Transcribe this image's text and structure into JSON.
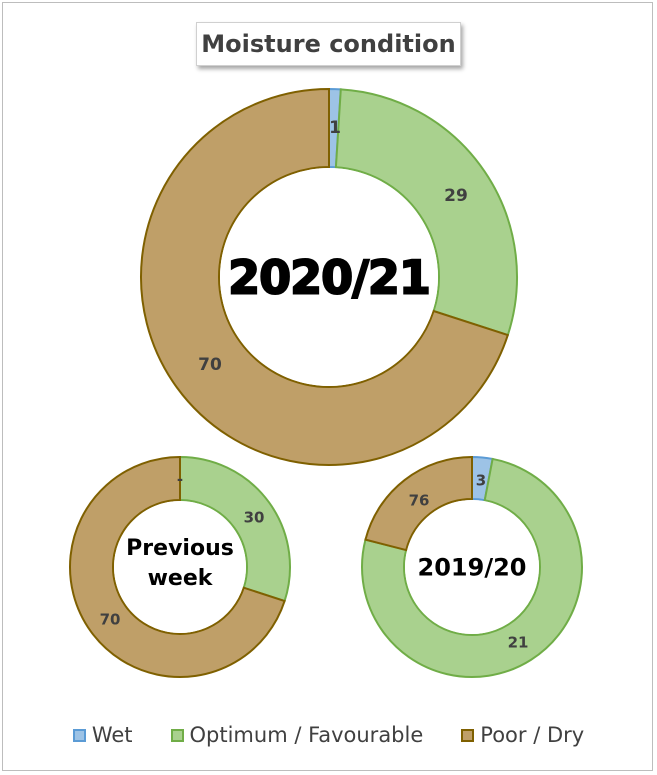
{
  "title": "Moisture condition",
  "colors": {
    "wet": "#9dc3e6",
    "wet_border": "#5b9bd5",
    "optimum": "#a9d18e",
    "optimum_border": "#70ad47",
    "poor": "#bf9f68",
    "poor_border": "#7f6000"
  },
  "chart_data": [
    {
      "type": "donut",
      "center_label": "2020/21",
      "categories": [
        "Wet",
        "Optimum / Favourable",
        "Poor / Dry"
      ],
      "values": [
        1,
        29,
        70
      ],
      "data_labels": [
        "1",
        "29",
        "70"
      ]
    },
    {
      "type": "donut",
      "center_label": "Previous week",
      "categories": [
        "Wet",
        "Optimum / Favourable",
        "Poor / Dry"
      ],
      "values": [
        0,
        30,
        70
      ],
      "data_labels": [
        "-",
        "30",
        "70"
      ]
    },
    {
      "type": "donut",
      "center_label": "2019/20",
      "categories": [
        "Wet",
        "Optimum / Favourable",
        "Poor / Dry"
      ],
      "values": [
        3,
        76,
        21
      ],
      "data_labels": [
        "3",
        "76",
        "21"
      ]
    }
  ],
  "legend": [
    {
      "label": "Wet",
      "key": "wet"
    },
    {
      "label": "Optimum / Favourable",
      "key": "optimum"
    },
    {
      "label": "Poor / Dry",
      "key": "poor"
    }
  ]
}
